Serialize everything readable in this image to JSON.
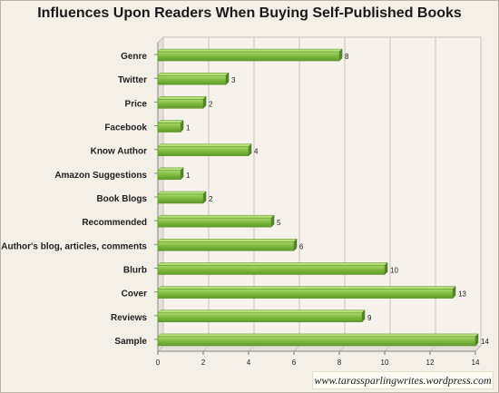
{
  "chart_data": {
    "type": "bar",
    "orientation": "horizontal",
    "title": "Influences Upon Readers When Buying Self-Published Books",
    "categories": [
      "Genre",
      "Twitter",
      "Price",
      "Facebook",
      "Know Author",
      "Amazon Suggestions",
      "Book Blogs",
      "Recommended",
      "Author's blog, articles, comments",
      "Blurb",
      "Cover",
      "Reviews",
      "Sample"
    ],
    "values": [
      8,
      3,
      2,
      1,
      4,
      1,
      2,
      5,
      6,
      10,
      13,
      9,
      14
    ],
    "xlim": [
      0,
      14
    ],
    "xticks": [
      0,
      2,
      4,
      6,
      8,
      10,
      12,
      14
    ],
    "grid": true,
    "legend": "none",
    "bar_color": "#7db83e"
  },
  "watermark": "www.tarassparlingwrites.wordpress.com"
}
